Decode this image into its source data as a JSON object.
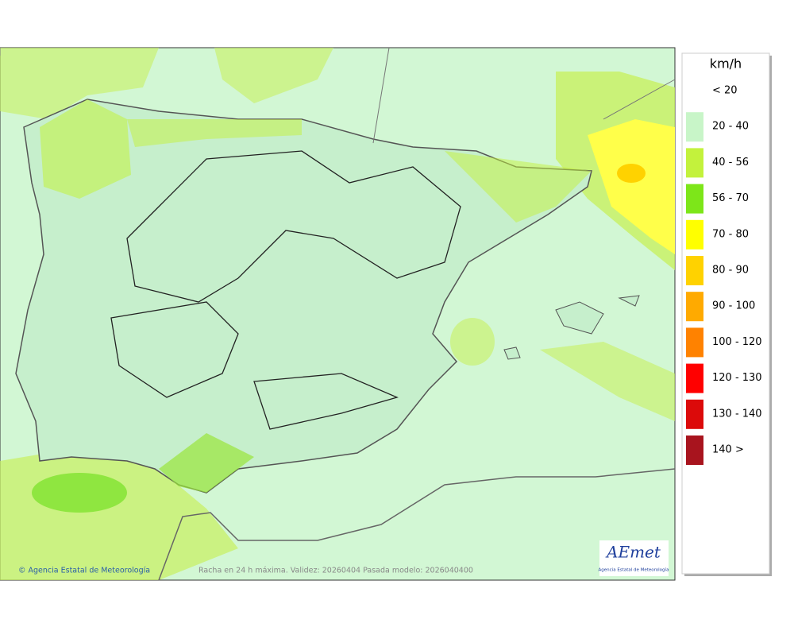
{
  "legend": {
    "title": "km/h",
    "items": [
      {
        "label": "< 20",
        "color": "#ffffff"
      },
      {
        "label": "20 - 40",
        "color": "#c8f5c8"
      },
      {
        "label": "40 - 56",
        "color": "#c3f23c"
      },
      {
        "label": "56 - 70",
        "color": "#7de619"
      },
      {
        "label": "70 - 80",
        "color": "#ffff00"
      },
      {
        "label": "80 - 90",
        "color": "#ffd200"
      },
      {
        "label": "90 - 100",
        "color": "#ffaa00"
      },
      {
        "label": "100 - 120",
        "color": "#ff8200"
      },
      {
        "label": "120 - 130",
        "color": "#ff0000"
      },
      {
        "label": "130 - 140",
        "color": "#dc0a0a"
      },
      {
        "label": "140 >",
        "color": "#a8141e"
      }
    ]
  },
  "footer": {
    "credit": "© Agencia Estatal de Meteorología",
    "caption": "Racha en 24 h máxima. Validez: 20260404 Pasada modelo: 2026040400"
  },
  "logo": {
    "name": "AEmet",
    "subtitle": "Agencia Estatal de Meteorología"
  }
}
